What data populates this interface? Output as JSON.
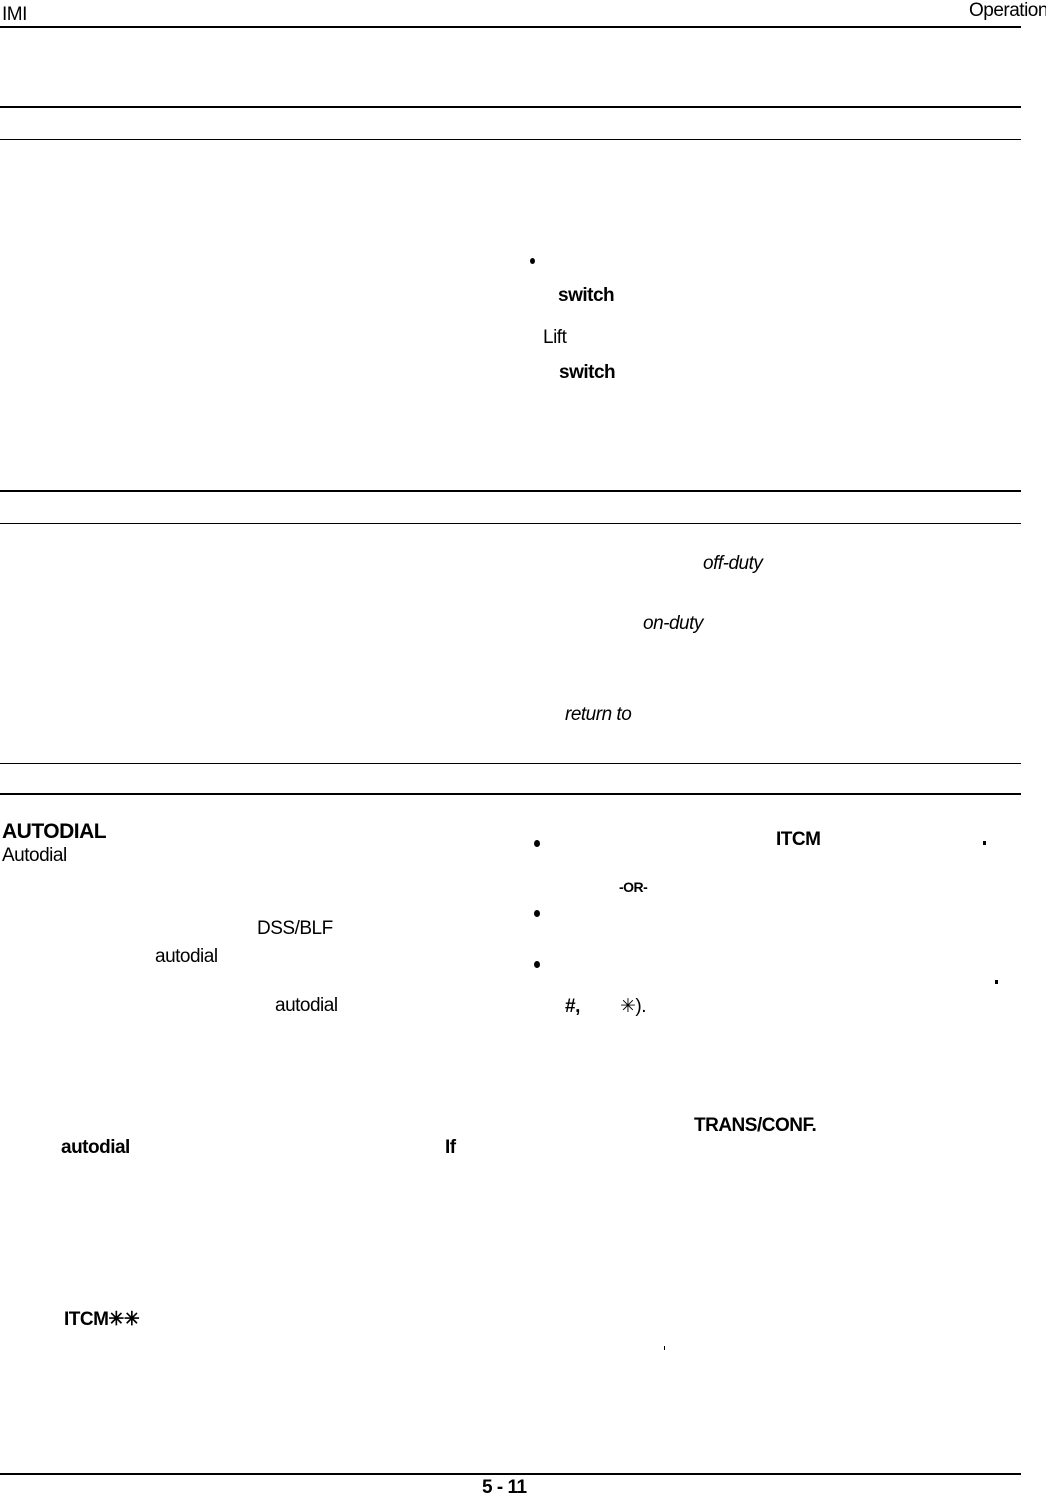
{
  "header": {
    "left": "IMI",
    "right": "Operation"
  },
  "section1": {
    "switch_1": "switch",
    "lift": "Lift",
    "switch_2": "switch"
  },
  "section2": {
    "off_duty": "off-duty",
    "on_duty": "on-duty",
    "return_to": "return to"
  },
  "autodial": {
    "heading": "AUTODIAL",
    "subheading": "Autodial",
    "dss_blf": "DSS/BLF",
    "autodial_1": "autodial",
    "autodial_2": "autodial",
    "autodial_3": "autodial",
    "if": "If",
    "itcm_stars": "ITCM✳✳",
    "itcm": "ITCM",
    "or": "-OR-",
    "hash": "#,",
    "star_paren": "✳).",
    "trans_conf": "TRANS/CONF."
  },
  "footer": {
    "page_number": "5 - 11"
  }
}
